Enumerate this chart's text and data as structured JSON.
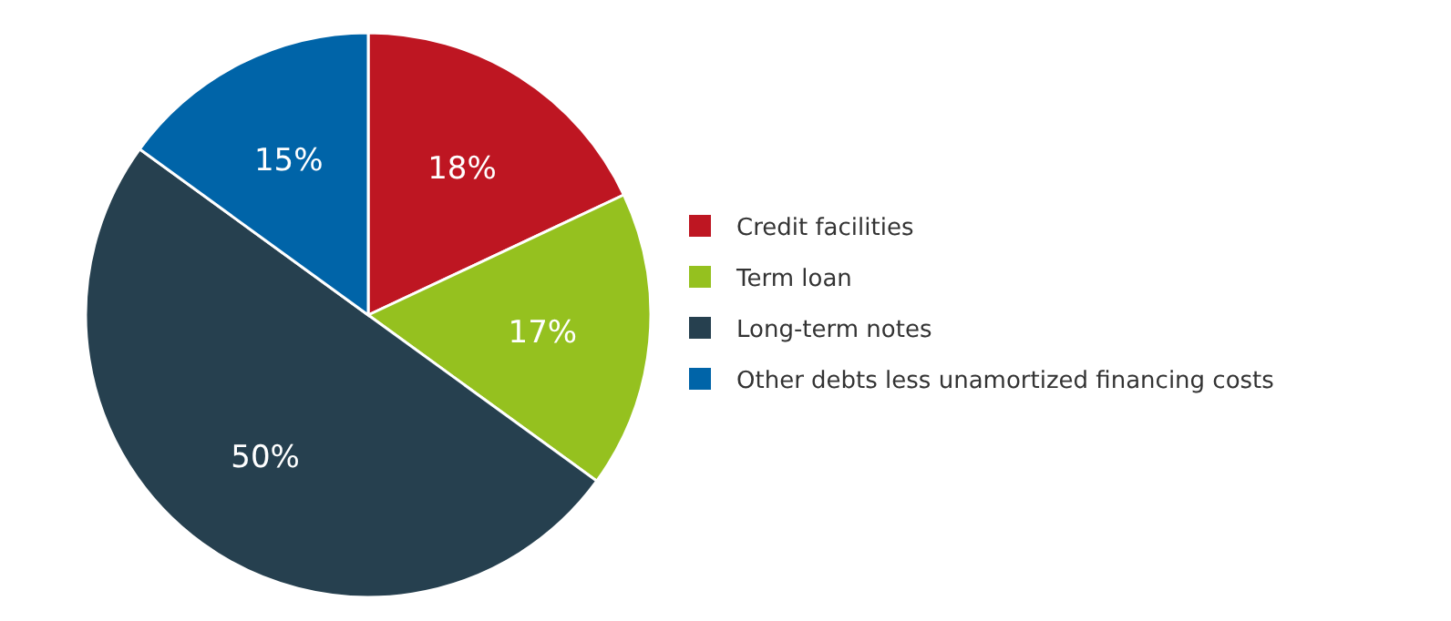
{
  "chart_data": {
    "type": "pie",
    "categories": [
      "Credit facilities",
      "Term loan",
      "Long-term notes",
      "Other debts less unamortized financing costs"
    ],
    "values": [
      18,
      17,
      50,
      15
    ],
    "colors": [
      "#be1622",
      "#95c11f",
      "#26404f",
      "#0064a8"
    ],
    "value_labels": [
      "18%",
      "17%",
      "50%",
      "15%"
    ],
    "legend": "right"
  }
}
